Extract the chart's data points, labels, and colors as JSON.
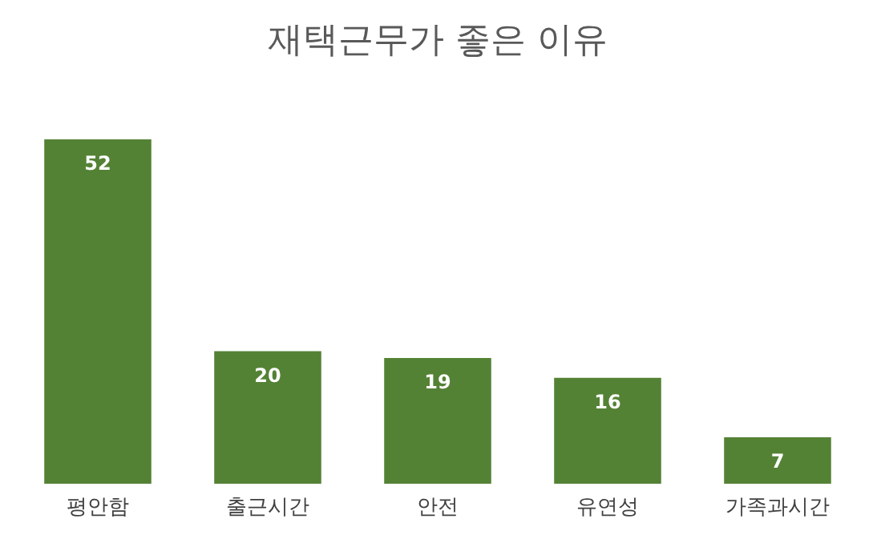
{
  "chart_data": {
    "type": "bar",
    "title": "재택근무가 좋은 이유",
    "categories": [
      "평안함",
      "출근시간",
      "안전",
      "유연성",
      "가족과시간"
    ],
    "values": [
      52,
      20,
      19,
      16,
      7
    ],
    "color": "#548235",
    "data_labels": true
  }
}
